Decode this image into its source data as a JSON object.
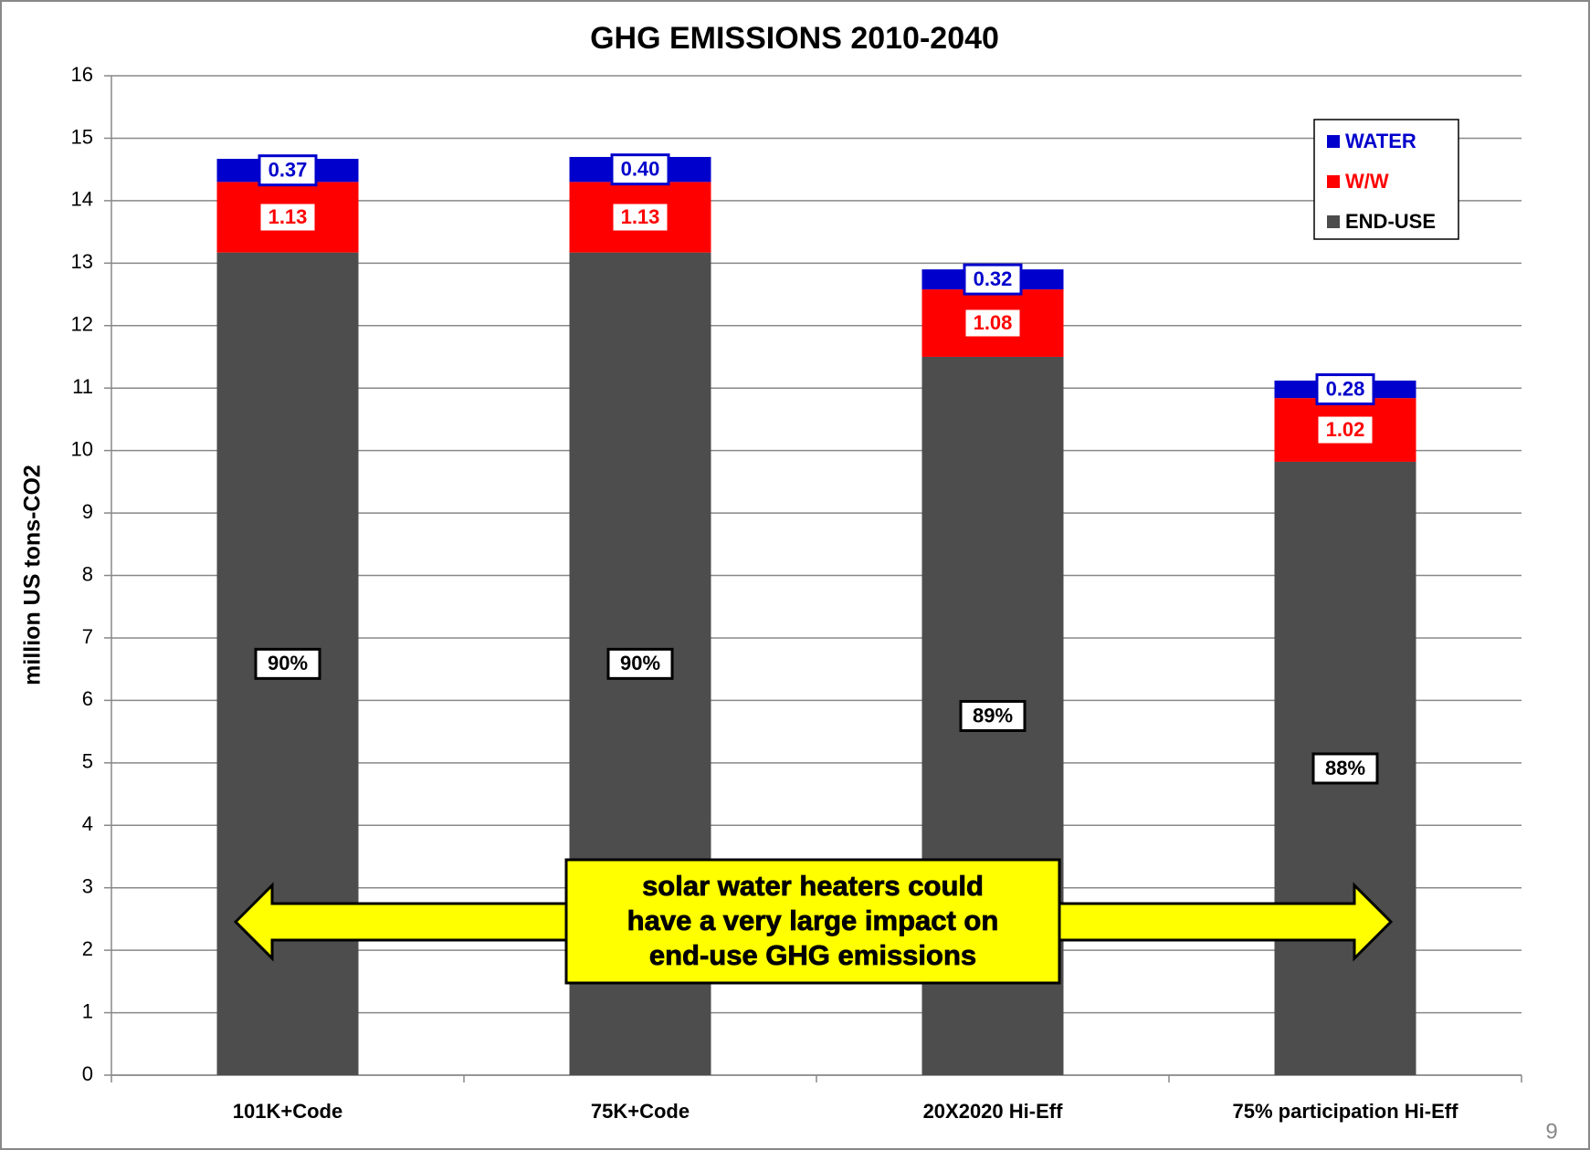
{
  "chart_data": {
    "type": "stacked_bar",
    "title": "GHG EMISSIONS 2010-2040",
    "y_label": "million US tons-CO2",
    "categories": [
      "101K+Code",
      "75K+Code",
      "20X2020 Hi-Eff",
      "75% participation  Hi-Eff"
    ],
    "series": [
      {
        "name": "END-USE",
        "color": "#4d4d4d",
        "values": [
          13.17,
          13.17,
          11.5,
          9.82
        ]
      },
      {
        "name": "W/W",
        "color": "#ff0000",
        "values": [
          1.13,
          1.13,
          1.08,
          1.02
        ],
        "value_labels": [
          "1.13",
          "1.13",
          "1.08",
          "1.02"
        ]
      },
      {
        "name": "WATER",
        "color": "#0000cc",
        "values": [
          0.37,
          0.4,
          0.32,
          0.28
        ],
        "value_labels": [
          "0.37",
          "0.40",
          "0.32",
          "0.28"
        ]
      }
    ],
    "share_labels": [
      "90%",
      "90%",
      "89%",
      "88%"
    ],
    "ylim": [
      0,
      16
    ],
    "yticks": [
      0,
      1,
      2,
      3,
      4,
      5,
      6,
      7,
      8,
      9,
      10,
      11,
      12,
      13,
      14,
      15,
      16
    ],
    "grid": true,
    "legend": "upper right",
    "annotation": [
      "solar water heaters could",
      "have a very large impact on",
      "end-use GHG emissions"
    ],
    "page_number": "9"
  }
}
